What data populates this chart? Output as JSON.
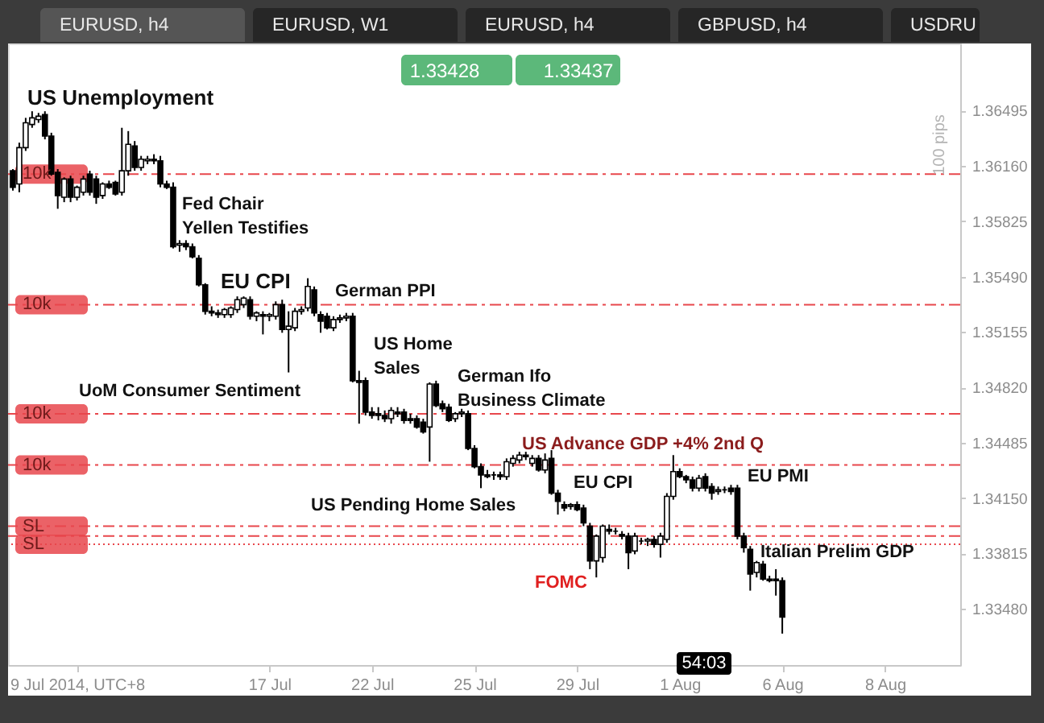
{
  "chart_data": {
    "type": "candlestick",
    "title": "EURUSD, h4",
    "color": "#000000",
    "categories": [
      null,
      null,
      null,
      null,
      null,
      null,
      null,
      null,
      null,
      null,
      "9 Jul 2014, UTC+8",
      null,
      null,
      null,
      null,
      null,
      null,
      null,
      null,
      null,
      null,
      null,
      null,
      null,
      null,
      null,
      null,
      null,
      null,
      null,
      null,
      null,
      null,
      null,
      null,
      null,
      null,
      null,
      null,
      null,
      "17 Jul",
      null,
      null,
      null,
      null,
      null,
      null,
      null,
      null,
      null,
      null,
      null,
      null,
      null,
      null,
      null,
      "22 Jul",
      null,
      null,
      null,
      null,
      null,
      null,
      null,
      null,
      null,
      null,
      null,
      null,
      null,
      null,
      null,
      "25 Jul",
      null,
      null,
      null,
      null,
      null,
      null,
      null,
      null,
      null,
      null,
      null,
      null,
      null,
      null,
      null,
      "29 Jul",
      null,
      null,
      null,
      null,
      null,
      null,
      null,
      null,
      null,
      null,
      null,
      null,
      null,
      null,
      null,
      "1 Aug",
      null,
      null,
      null,
      null,
      null,
      null,
      null,
      null,
      null,
      null,
      null,
      null,
      null,
      null,
      null,
      "6 Aug",
      null,
      null,
      null,
      null,
      null,
      null,
      null,
      null,
      null,
      null,
      null,
      null,
      null,
      null,
      null,
      "8 Aug",
      null,
      null,
      null,
      null,
      null,
      null,
      null,
      null,
      null,
      null,
      null
    ],
    "ohlc": [
      [
        1.3613,
        1.3614,
        1.3601,
        1.3603
      ],
      [
        1.3605,
        1.363,
        1.36,
        1.3627
      ],
      [
        1.3627,
        1.3645,
        1.3625,
        1.3642
      ],
      [
        1.3641,
        1.3649,
        1.3639,
        1.3645
      ],
      [
        1.3644,
        1.3648,
        1.3642,
        1.3646
      ],
      [
        1.3647,
        1.3649,
        1.3632,
        1.3634
      ],
      [
        1.3634,
        1.3636,
        1.361,
        1.3611
      ],
      [
        1.3612,
        1.3614,
        1.359,
        1.3598
      ],
      [
        1.3597,
        1.3609,
        1.3594,
        1.3608
      ],
      [
        1.3608,
        1.361,
        1.3594,
        1.3597
      ],
      [
        1.3597,
        1.3604,
        1.3595,
        1.3603
      ],
      [
        1.36,
        1.361,
        1.3598,
        1.3608
      ],
      [
        1.3611,
        1.3613,
        1.3598,
        1.36
      ],
      [
        1.3608,
        1.361,
        1.3593,
        1.3597
      ],
      [
        1.3598,
        1.3606,
        1.3596,
        1.3605
      ],
      [
        1.3605,
        1.3607,
        1.3602,
        1.3603
      ],
      [
        1.3606,
        1.3607,
        1.3598,
        1.3599
      ],
      [
        1.36,
        1.3639,
        1.3598,
        1.3613
      ],
      [
        1.3613,
        1.3637,
        1.361,
        1.3629
      ],
      [
        1.3628,
        1.3631,
        1.3613,
        1.3615
      ],
      [
        1.3615,
        1.3622,
        1.3613,
        1.362
      ],
      [
        1.3619,
        1.3622,
        1.3617,
        1.362
      ],
      [
        1.362,
        1.3623,
        1.3617,
        1.3619
      ],
      [
        1.3619,
        1.3622,
        1.3603,
        1.3605
      ],
      [
        1.3605,
        1.3607,
        1.3602,
        1.3603
      ],
      [
        1.3603,
        1.3606,
        1.3566,
        1.3567
      ],
      [
        1.3568,
        1.3571,
        1.3564,
        1.3569
      ],
      [
        1.3569,
        1.3571,
        1.3565,
        1.3567
      ],
      [
        1.3567,
        1.3569,
        1.356,
        1.3561
      ],
      [
        1.356,
        1.3562,
        1.3543,
        1.3544
      ],
      [
        1.3544,
        1.3545,
        1.3526,
        1.3528
      ],
      [
        1.3528,
        1.3531,
        1.3525,
        1.3527
      ],
      [
        1.3527,
        1.3529,
        1.3524,
        1.3526
      ],
      [
        1.3526,
        1.353,
        1.3524,
        1.3529
      ],
      [
        1.3526,
        1.3531,
        1.3524,
        1.353
      ],
      [
        1.3529,
        1.3537,
        1.3527,
        1.3535
      ],
      [
        1.3532,
        1.3537,
        1.353,
        1.3536
      ],
      [
        1.3535,
        1.3537,
        1.3523,
        1.3525
      ],
      [
        1.3525,
        1.3528,
        1.3522,
        1.3527
      ],
      [
        1.3526,
        1.3528,
        1.3514,
        1.3525
      ],
      [
        1.3525,
        1.3527,
        1.3522,
        1.3526
      ],
      [
        1.3525,
        1.3534,
        1.3523,
        1.3532
      ],
      [
        1.3532,
        1.3535,
        1.3515,
        1.3517
      ],
      [
        1.3517,
        1.3528,
        1.3491,
        1.3519
      ],
      [
        1.3518,
        1.353,
        1.3516,
        1.3528
      ],
      [
        1.3528,
        1.3531,
        1.3526,
        1.3529
      ],
      [
        1.353,
        1.3548,
        1.3528,
        1.3543
      ],
      [
        1.3541,
        1.3543,
        1.3525,
        1.3527
      ],
      [
        1.3526,
        1.3528,
        1.3515,
        1.3522
      ],
      [
        1.3525,
        1.3527,
        1.3517,
        1.3518
      ],
      [
        1.3518,
        1.3525,
        1.3516,
        1.3523
      ],
      [
        1.3523,
        1.3526,
        1.3521,
        1.3524
      ],
      [
        1.3524,
        1.3527,
        1.3522,
        1.3525
      ],
      [
        1.3525,
        1.3527,
        1.3485,
        1.3486
      ],
      [
        1.3486,
        1.3492,
        1.346,
        1.3485
      ],
      [
        1.3486,
        1.3488,
        1.3465,
        1.3467
      ],
      [
        1.3467,
        1.347,
        1.3463,
        1.3465
      ],
      [
        1.3466,
        1.347,
        1.3462,
        1.3465
      ],
      [
        1.3465,
        1.3468,
        1.3461,
        1.3463
      ],
      [
        1.3463,
        1.347,
        1.346,
        1.3468
      ],
      [
        1.3467,
        1.347,
        1.3464,
        1.3466
      ],
      [
        1.3467,
        1.3469,
        1.346,
        1.3462
      ],
      [
        1.3463,
        1.3466,
        1.346,
        1.3462
      ],
      [
        1.3463,
        1.3465,
        1.3457,
        1.3458
      ],
      [
        1.3461,
        1.3463,
        1.3454,
        1.3455
      ],
      [
        1.3458,
        1.3485,
        1.3437,
        1.3484
      ],
      [
        1.3484,
        1.3486,
        1.347,
        1.3471
      ],
      [
        1.3472,
        1.3474,
        1.3467,
        1.3469
      ],
      [
        1.347,
        1.3472,
        1.3461,
        1.3462
      ],
      [
        1.3463,
        1.3467,
        1.3461,
        1.3466
      ],
      [
        1.3466,
        1.3469,
        1.3464,
        1.3467
      ],
      [
        1.3466,
        1.3468,
        1.3444,
        1.3445
      ],
      [
        1.3445,
        1.3447,
        1.3433,
        1.3434
      ],
      [
        1.3434,
        1.3436,
        1.3421,
        1.3429
      ],
      [
        1.3429,
        1.3432,
        1.3427,
        1.3428
      ],
      [
        1.3429,
        1.3431,
        1.3426,
        1.3429
      ],
      [
        1.3429,
        1.3431,
        1.3426,
        1.3428
      ],
      [
        1.3428,
        1.3439,
        1.3426,
        1.3437
      ],
      [
        1.3436,
        1.3441,
        1.3434,
        1.3439
      ],
      [
        1.3438,
        1.3443,
        1.3436,
        1.3441
      ],
      [
        1.3441,
        1.3443,
        1.3438,
        1.344
      ],
      [
        1.3436,
        1.3441,
        1.3434,
        1.3439
      ],
      [
        1.3439,
        1.3441,
        1.3431,
        1.3432
      ],
      [
        1.3432,
        1.3442,
        1.343,
        1.3438
      ],
      [
        1.3439,
        1.3444,
        1.3417,
        1.3418
      ],
      [
        1.3418,
        1.342,
        1.3405,
        1.3413
      ],
      [
        1.3411,
        1.3413,
        1.3407,
        1.3409
      ],
      [
        1.341,
        1.3412,
        1.3408,
        1.3411
      ],
      [
        1.3411,
        1.3413,
        1.3407,
        1.3408
      ],
      [
        1.3409,
        1.3411,
        1.3398,
        1.34
      ],
      [
        1.3398,
        1.34,
        1.3372,
        1.3377
      ],
      [
        1.3377,
        1.3393,
        1.3367,
        1.3392
      ],
      [
        1.3379,
        1.3399,
        1.3376,
        1.3398
      ],
      [
        1.3396,
        1.3399,
        1.3393,
        1.3395
      ],
      [
        1.3395,
        1.3397,
        1.3393,
        1.3395
      ],
      [
        1.3393,
        1.3395,
        1.339,
        1.3392
      ],
      [
        1.3392,
        1.3394,
        1.3372,
        1.3382
      ],
      [
        1.3383,
        1.3394,
        1.3381,
        1.3392
      ],
      [
        1.3389,
        1.3391,
        1.3387,
        1.3389
      ],
      [
        1.3389,
        1.3391,
        1.3386,
        1.339
      ],
      [
        1.339,
        1.3392,
        1.3385,
        1.3387
      ],
      [
        1.3387,
        1.3394,
        1.3379,
        1.3392
      ],
      [
        1.339,
        1.3418,
        1.3388,
        1.3416
      ],
      [
        1.3416,
        1.3441,
        1.3414,
        1.3431
      ],
      [
        1.3431,
        1.3433,
        1.3427,
        1.3428
      ],
      [
        1.3428,
        1.3429,
        1.3424,
        1.3426
      ],
      [
        1.3426,
        1.3428,
        1.3419,
        1.3421
      ],
      [
        1.3421,
        1.3429,
        1.3419,
        1.3427
      ],
      [
        1.3428,
        1.343,
        1.3419,
        1.3421
      ],
      [
        1.3422,
        1.3424,
        1.3414,
        1.3418
      ],
      [
        1.3419,
        1.3422,
        1.3417,
        1.342
      ],
      [
        1.342,
        1.3422,
        1.3418,
        1.342
      ],
      [
        1.3421,
        1.3423,
        1.3417,
        1.3419
      ],
      [
        1.3421,
        1.3423,
        1.339,
        1.3392
      ],
      [
        1.3392,
        1.3394,
        1.3382,
        1.3385
      ],
      [
        1.3384,
        1.3386,
        1.3359,
        1.3369
      ],
      [
        1.337,
        1.3377,
        1.3367,
        1.3376
      ],
      [
        1.3375,
        1.3377,
        1.3365,
        1.3366
      ],
      [
        1.3366,
        1.3368,
        1.3364,
        1.3365
      ],
      [
        1.3366,
        1.3372,
        1.3356,
        1.3365
      ],
      [
        1.3365,
        1.3367,
        1.3333,
        1.3343
      ],
      null,
      null,
      null,
      null,
      null,
      null,
      null,
      null,
      null,
      null,
      null,
      null,
      null,
      null,
      null,
      null,
      null,
      null,
      null,
      null,
      null,
      null,
      null,
      null,
      null,
      null,
      null
    ],
    "ylim": [
      1.3314,
      1.369
    ],
    "yticks": [
      1.36495,
      {
        "value": 1.3616,
        "label": "1.36160"
      },
      1.35825,
      {
        "value": 1.3549,
        "label": "1.35490"
      },
      1.35155,
      {
        "value": 1.3482,
        "label": "1.34820"
      },
      1.34485,
      {
        "value": 1.3415,
        "label": "1.34150"
      },
      1.33815,
      {
        "value": 1.3348,
        "label": "1.33480"
      }
    ],
    "ref_lines": [
      {
        "axis": "y",
        "value": 1.3611,
        "label": "10k",
        "color": "#e8474c",
        "line_style": "dashed"
      },
      {
        "axis": "y",
        "value": 1.3532,
        "label": "10k",
        "color": "#e8474c",
        "line_style": "dashed"
      },
      {
        "axis": "y",
        "value": 1.3466,
        "label": "10k",
        "color": "#e8474c",
        "line_style": "dashed"
      },
      {
        "axis": "y",
        "value": 1.3435,
        "label": "10k",
        "color": "#e8474c",
        "line_style": "dashed"
      },
      {
        "axis": "y",
        "value": 1.3398,
        "label": "SL",
        "color": "#e8474c",
        "line_style": "dashed"
      },
      {
        "axis": "y",
        "value": 1.3392,
        "color": "#e8474c",
        "line_style": "dashed"
      },
      {
        "axis": "y",
        "value": 1.3387,
        "label": "SL",
        "color": "#e8474c",
        "line_style": "dotted"
      }
    ],
    "annotations": [
      "US Unemployment",
      "Fed Chair\nYellen Testifies",
      "EU CPI",
      "German PPI",
      "US Home\nSales",
      "German Ifo\nBusiness Climate",
      "UoM Consumer Sentiment",
      "US Advance GDP +4% 2nd Q",
      "EU CPI",
      "EU PMI",
      "US Pending Home Sales",
      "Italian Prelim GDP",
      "FOMC",
      "EURUSD, W1",
      "EURUSD, h4",
      "GBPUSD, h4",
      "USDRU",
      "1.33428",
      "1.33437",
      "100 pips",
      "54:03"
    ]
  }
}
